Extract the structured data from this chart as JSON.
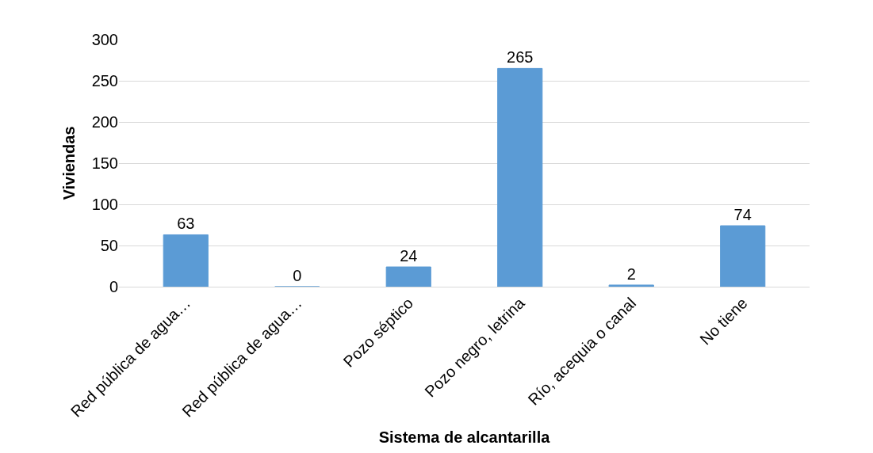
{
  "chart_data": {
    "type": "bar",
    "xlabel": "Sistema de alcantarilla",
    "ylabel": "Viviendas",
    "categories": [
      "Red pública de agua…",
      "Red pública de agua…",
      "Pozo séptico",
      "Pozo negro, letrina",
      "Río, acequia o canal",
      "No tiene"
    ],
    "values": [
      63,
      0,
      24,
      265,
      2,
      74
    ],
    "color": "#5b9bd5",
    "ylim": [
      0,
      300
    ],
    "yticks": [
      0,
      50,
      100,
      150,
      200,
      250,
      300
    ],
    "grid": "y",
    "data_labels": true
  }
}
